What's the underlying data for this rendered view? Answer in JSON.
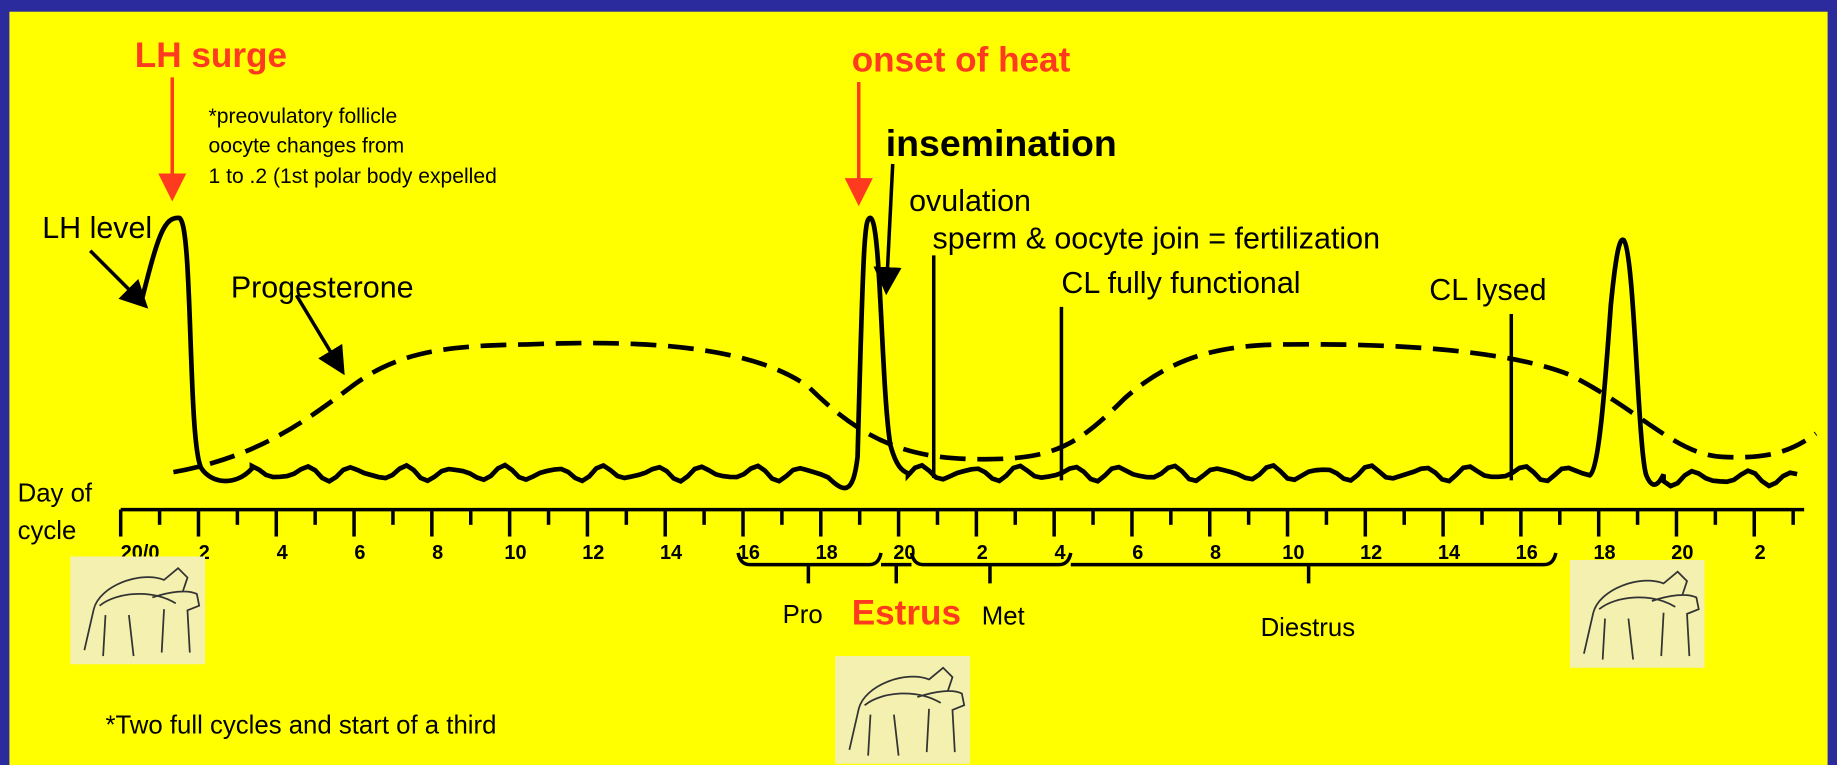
{
  "title_left": "LH surge",
  "follicle_note": [
    "*preovulatory follicle",
    "oocyte changes from",
    "1 to .2 (1st polar body expelled"
  ],
  "title_right": "onset of heat",
  "events": {
    "insemination": "insemination",
    "ovulation": "ovulation",
    "fertilization": "sperm & oocyte join = fertilization",
    "cl_functional": "CL fully functional",
    "cl_lysed": "CL lysed"
  },
  "curve_labels": {
    "lh": "LH level",
    "progesterone": "Progesterone"
  },
  "axis": {
    "label": [
      "Day of",
      "cycle"
    ],
    "ticks": [
      "20/0",
      "2",
      "4",
      "6",
      "8",
      "10",
      "12",
      "14",
      "16",
      "18",
      "20",
      "2",
      "4",
      "6",
      "8",
      "10",
      "12",
      "14",
      "16",
      "18",
      "20",
      "2"
    ]
  },
  "phases": {
    "pro": "Pro",
    "estrus": "Estrus",
    "met": "Met",
    "diestrus": "Diestrus"
  },
  "footnote": "*Two full cycles and start of a third"
}
